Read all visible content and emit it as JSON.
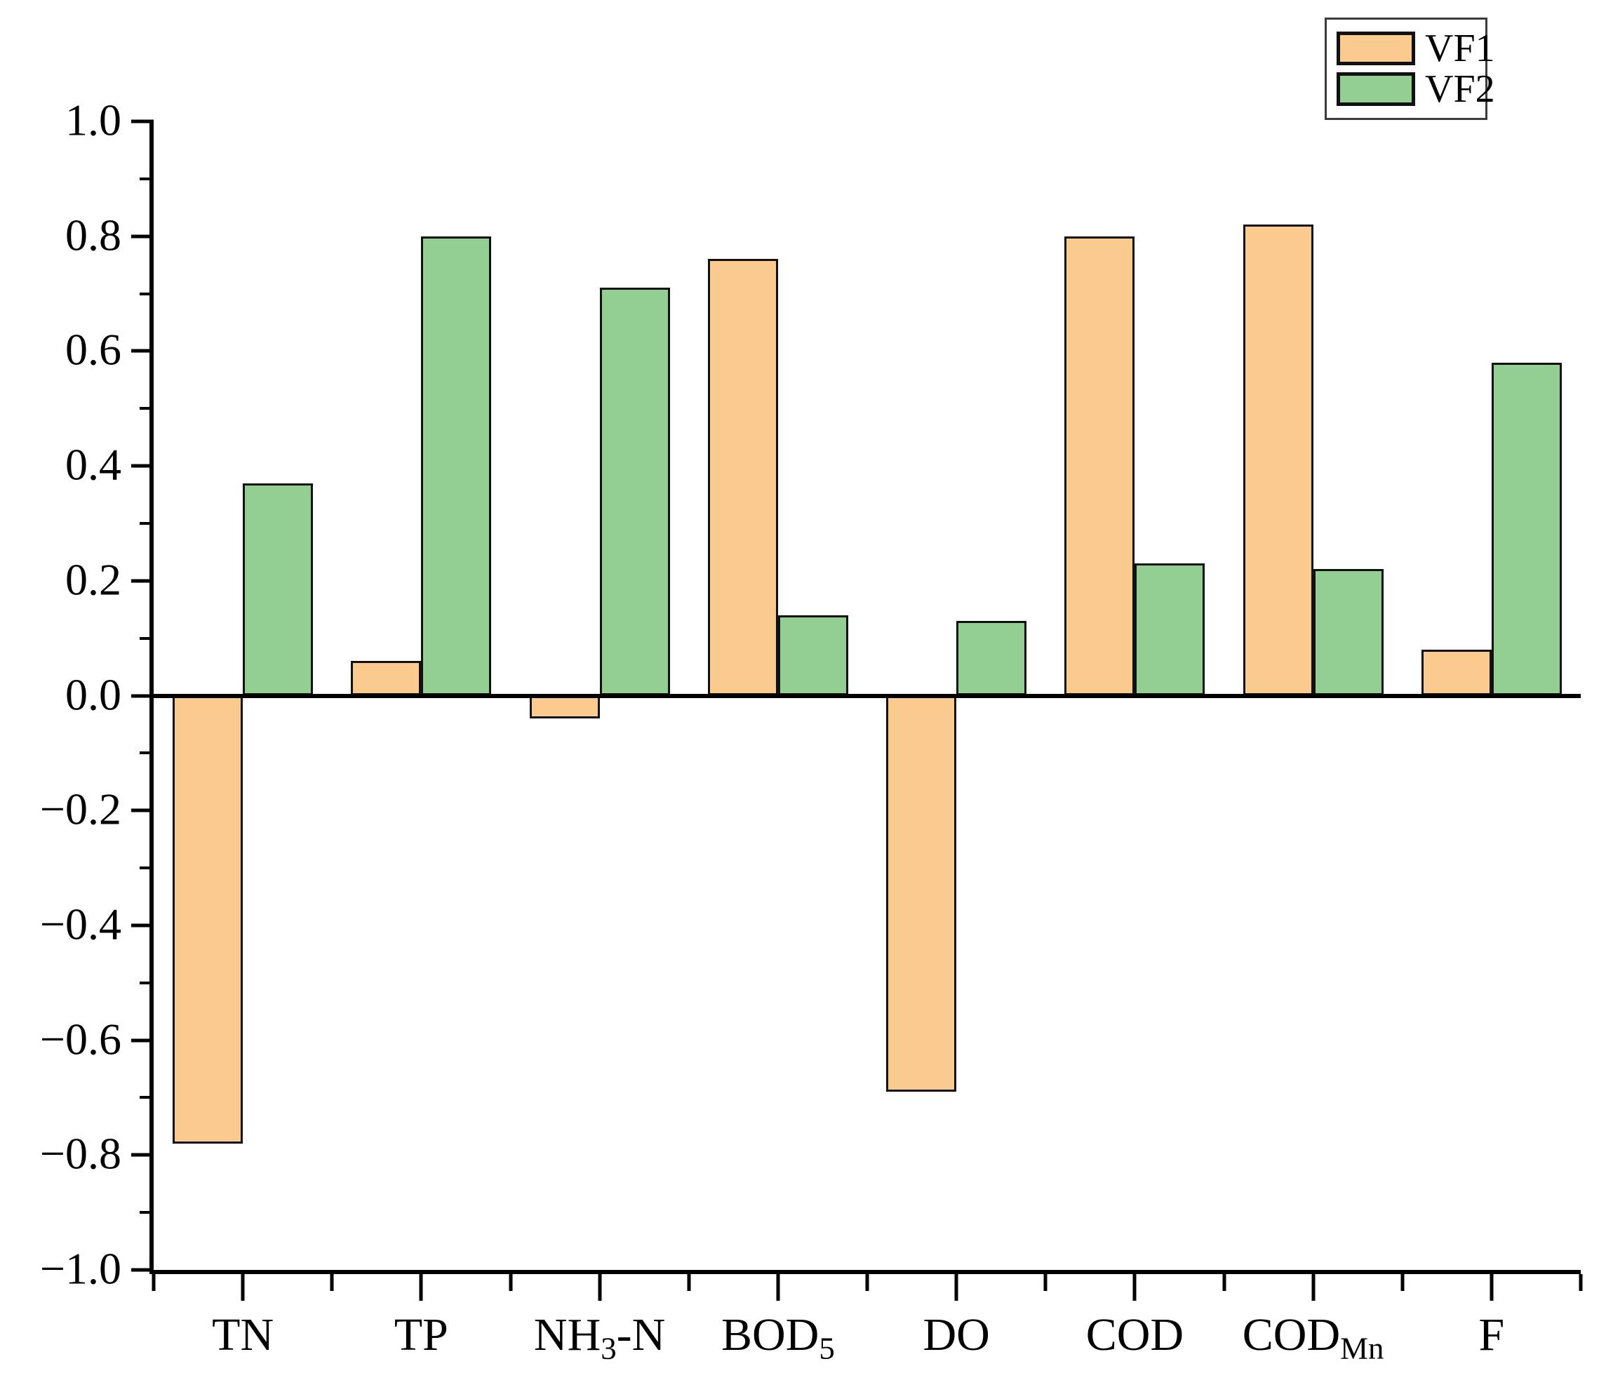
{
  "chart_data": {
    "type": "bar",
    "title": "",
    "xlabel": "",
    "ylabel": "",
    "ylim": [
      -1.0,
      1.0
    ],
    "y_major_step": 0.2,
    "y_minor_step": 0.1,
    "grid": false,
    "legend_position": "top-right",
    "y_tick_labels": [
      "1.0",
      "0.8",
      "0.6",
      "0.4",
      "0.2",
      "0.0",
      "−0.2",
      "−0.4",
      "−0.6",
      "−0.8",
      "−1.0"
    ],
    "y_tick_values": [
      1.0,
      0.8,
      0.6,
      0.4,
      0.2,
      0.0,
      -0.2,
      -0.4,
      -0.6,
      -0.8,
      -1.0
    ],
    "y_minor_values": [
      0.9,
      0.7,
      0.5,
      0.3,
      0.1,
      -0.1,
      -0.3,
      -0.5,
      -0.7,
      -0.9
    ],
    "categories": [
      {
        "segments": [
          {
            "text": "TN"
          }
        ]
      },
      {
        "segments": [
          {
            "text": "TP"
          }
        ]
      },
      {
        "segments": [
          {
            "text": "NH"
          },
          {
            "text": "3",
            "sub": true
          },
          {
            "text": "-N"
          }
        ]
      },
      {
        "segments": [
          {
            "text": "BOD"
          },
          {
            "text": "5",
            "sub": true
          }
        ]
      },
      {
        "segments": [
          {
            "text": "DO"
          }
        ]
      },
      {
        "segments": [
          {
            "text": "COD"
          }
        ]
      },
      {
        "segments": [
          {
            "text": "COD"
          },
          {
            "text": "Mn",
            "sub": true
          }
        ]
      },
      {
        "segments": [
          {
            "text": "F"
          }
        ]
      }
    ],
    "series": [
      {
        "name": "VF1",
        "color": "#FACA8E",
        "values": [
          -0.78,
          0.06,
          -0.04,
          0.76,
          -0.69,
          0.8,
          0.82,
          0.08
        ]
      },
      {
        "name": "VF2",
        "color": "#93CF93",
        "values": [
          0.37,
          0.8,
          0.71,
          0.14,
          0.13,
          0.23,
          0.22,
          0.58
        ]
      }
    ],
    "colors": {
      "axis": "#000000",
      "bar_border": "#111111",
      "background": "#ffffff"
    }
  }
}
